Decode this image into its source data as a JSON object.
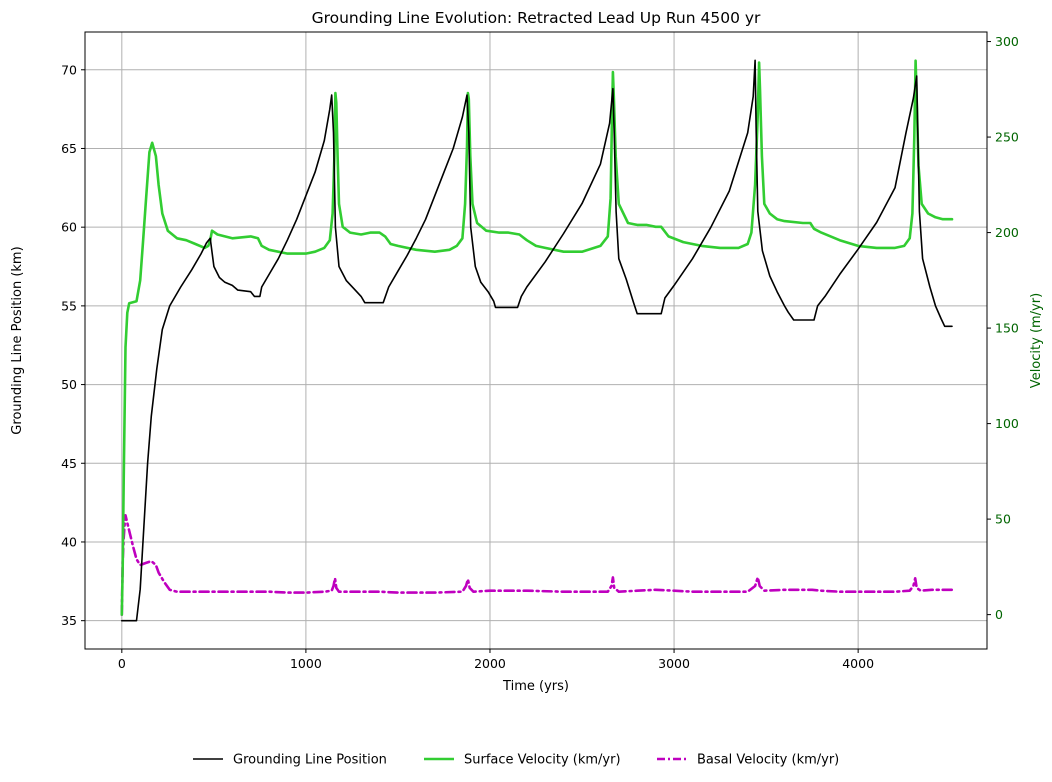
{
  "chart_data": {
    "type": "line",
    "title": "Grounding Line Evolution: Retracted Lead Up Run 4500 yr",
    "xlabel": "Time (yrs)",
    "ylabel": "Grounding Line Position (km)",
    "y2label": "Velocity (m/yr)",
    "xlim": [
      -200,
      4700
    ],
    "ylim": [
      33.2,
      72.4
    ],
    "y2lim": [
      -18,
      305
    ],
    "xticks": [
      0,
      1000,
      2000,
      3000,
      4000
    ],
    "yticks": [
      35,
      40,
      45,
      50,
      55,
      60,
      65,
      70
    ],
    "y2ticks": [
      0,
      50,
      100,
      150,
      200,
      250,
      300
    ],
    "grid": true,
    "legend_position": "bottom-center",
    "colors": {
      "grounding_line": "#000000",
      "surface_velocity": "#32cd32",
      "basal_velocity": "#bf00bf",
      "y2_axis": "#006400",
      "grid": "#b0b0b0"
    },
    "series": [
      {
        "name": "Grounding Line Position",
        "axis": "left",
        "style": "solid",
        "points": [
          [
            0,
            35
          ],
          [
            80,
            35
          ],
          [
            100,
            37
          ],
          [
            120,
            41
          ],
          [
            140,
            45
          ],
          [
            160,
            48
          ],
          [
            190,
            51
          ],
          [
            220,
            53.5
          ],
          [
            260,
            55
          ],
          [
            320,
            56.2
          ],
          [
            380,
            57.3
          ],
          [
            430,
            58.3
          ],
          [
            460,
            59
          ],
          [
            480,
            59.3
          ],
          [
            500,
            57.5
          ],
          [
            530,
            56.8
          ],
          [
            560,
            56.5
          ],
          [
            600,
            56.3
          ],
          [
            630,
            56
          ],
          [
            700,
            55.9
          ],
          [
            720,
            55.6
          ],
          [
            750,
            55.6
          ],
          [
            760,
            56.2
          ],
          [
            800,
            57
          ],
          [
            850,
            58
          ],
          [
            900,
            59.2
          ],
          [
            950,
            60.5
          ],
          [
            1000,
            62
          ],
          [
            1050,
            63.5
          ],
          [
            1100,
            65.5
          ],
          [
            1130,
            67.5
          ],
          [
            1140,
            68.4
          ],
          [
            1150,
            66
          ],
          [
            1160,
            60
          ],
          [
            1180,
            57.5
          ],
          [
            1220,
            56.6
          ],
          [
            1260,
            56.1
          ],
          [
            1300,
            55.6
          ],
          [
            1320,
            55.2
          ],
          [
            1420,
            55.2
          ],
          [
            1450,
            56.2
          ],
          [
            1500,
            57.2
          ],
          [
            1550,
            58.2
          ],
          [
            1600,
            59.3
          ],
          [
            1650,
            60.5
          ],
          [
            1700,
            62
          ],
          [
            1750,
            63.5
          ],
          [
            1800,
            65
          ],
          [
            1850,
            67
          ],
          [
            1875,
            68.4
          ],
          [
            1885,
            66
          ],
          [
            1895,
            60
          ],
          [
            1920,
            57.5
          ],
          [
            1950,
            56.5
          ],
          [
            1990,
            55.9
          ],
          [
            2020,
            55.3
          ],
          [
            2030,
            54.9
          ],
          [
            2150,
            54.9
          ],
          [
            2170,
            55.6
          ],
          [
            2200,
            56.2
          ],
          [
            2300,
            57.8
          ],
          [
            2400,
            59.6
          ],
          [
            2500,
            61.5
          ],
          [
            2600,
            64
          ],
          [
            2650,
            66.6
          ],
          [
            2668,
            68.8
          ],
          [
            2675,
            66
          ],
          [
            2685,
            61
          ],
          [
            2700,
            58
          ],
          [
            2740,
            56.7
          ],
          [
            2780,
            55.2
          ],
          [
            2800,
            54.5
          ],
          [
            2930,
            54.5
          ],
          [
            2950,
            55.5
          ],
          [
            3000,
            56.3
          ],
          [
            3100,
            58
          ],
          [
            3200,
            60
          ],
          [
            3300,
            62.3
          ],
          [
            3400,
            66
          ],
          [
            3430,
            68.3
          ],
          [
            3440,
            70.6
          ],
          [
            3446,
            66
          ],
          [
            3455,
            61
          ],
          [
            3480,
            58.5
          ],
          [
            3520,
            56.9
          ],
          [
            3560,
            55.9
          ],
          [
            3600,
            55
          ],
          [
            3620,
            54.6
          ],
          [
            3650,
            54.1
          ],
          [
            3760,
            54.1
          ],
          [
            3780,
            55
          ],
          [
            3820,
            55.6
          ],
          [
            3900,
            57
          ],
          [
            4000,
            58.6
          ],
          [
            4100,
            60.3
          ],
          [
            4200,
            62.5
          ],
          [
            4260,
            66
          ],
          [
            4300,
            68.2
          ],
          [
            4318,
            69.6
          ],
          [
            4324,
            66
          ],
          [
            4333,
            61
          ],
          [
            4350,
            58
          ],
          [
            4390,
            56.2
          ],
          [
            4420,
            55
          ],
          [
            4450,
            54.2
          ],
          [
            4470,
            53.7
          ],
          [
            4510,
            53.7
          ]
        ]
      },
      {
        "name": "Surface Velocity (km/yr)",
        "axis": "right",
        "style": "solid",
        "points": [
          [
            0,
            0
          ],
          [
            5,
            25
          ],
          [
            10,
            70
          ],
          [
            20,
            140
          ],
          [
            30,
            158
          ],
          [
            40,
            163
          ],
          [
            80,
            164
          ],
          [
            100,
            175
          ],
          [
            115,
            195
          ],
          [
            130,
            215
          ],
          [
            150,
            242
          ],
          [
            165,
            247
          ],
          [
            185,
            240
          ],
          [
            200,
            225
          ],
          [
            220,
            210
          ],
          [
            250,
            201
          ],
          [
            300,
            197
          ],
          [
            350,
            196
          ],
          [
            400,
            194
          ],
          [
            450,
            192
          ],
          [
            470,
            193
          ],
          [
            480,
            196
          ],
          [
            490,
            201
          ],
          [
            520,
            199
          ],
          [
            600,
            197
          ],
          [
            700,
            198
          ],
          [
            740,
            197
          ],
          [
            760,
            193
          ],
          [
            800,
            191
          ],
          [
            900,
            189
          ],
          [
            1000,
            189
          ],
          [
            1050,
            190
          ],
          [
            1100,
            192
          ],
          [
            1130,
            196
          ],
          [
            1145,
            210
          ],
          [
            1155,
            240
          ],
          [
            1160,
            273
          ],
          [
            1165,
            268
          ],
          [
            1172,
            240
          ],
          [
            1180,
            215
          ],
          [
            1200,
            203
          ],
          [
            1240,
            200
          ],
          [
            1300,
            199
          ],
          [
            1350,
            200
          ],
          [
            1400,
            200
          ],
          [
            1430,
            198
          ],
          [
            1460,
            194
          ],
          [
            1500,
            193
          ],
          [
            1600,
            191
          ],
          [
            1700,
            190
          ],
          [
            1780,
            191
          ],
          [
            1820,
            193
          ],
          [
            1850,
            197
          ],
          [
            1865,
            215
          ],
          [
            1875,
            245
          ],
          [
            1880,
            273
          ],
          [
            1885,
            270
          ],
          [
            1893,
            240
          ],
          [
            1905,
            215
          ],
          [
            1930,
            205
          ],
          [
            1980,
            201
          ],
          [
            2050,
            200
          ],
          [
            2100,
            200
          ],
          [
            2160,
            199
          ],
          [
            2200,
            196
          ],
          [
            2250,
            193
          ],
          [
            2300,
            192
          ],
          [
            2400,
            190
          ],
          [
            2500,
            190
          ],
          [
            2600,
            193
          ],
          [
            2640,
            198
          ],
          [
            2655,
            218
          ],
          [
            2663,
            260
          ],
          [
            2668,
            284
          ],
          [
            2673,
            270
          ],
          [
            2683,
            240
          ],
          [
            2700,
            215
          ],
          [
            2750,
            205
          ],
          [
            2800,
            204
          ],
          [
            2850,
            204
          ],
          [
            2900,
            203
          ],
          [
            2930,
            203
          ],
          [
            2970,
            198
          ],
          [
            3050,
            195
          ],
          [
            3150,
            193
          ],
          [
            3250,
            192
          ],
          [
            3350,
            192
          ],
          [
            3400,
            194
          ],
          [
            3420,
            200
          ],
          [
            3440,
            225
          ],
          [
            3455,
            262
          ],
          [
            3462,
            289
          ],
          [
            3467,
            275
          ],
          [
            3477,
            240
          ],
          [
            3490,
            215
          ],
          [
            3520,
            210
          ],
          [
            3560,
            207
          ],
          [
            3600,
            206
          ],
          [
            3700,
            205
          ],
          [
            3740,
            205
          ],
          [
            3760,
            202
          ],
          [
            3800,
            200
          ],
          [
            3900,
            196
          ],
          [
            4000,
            193
          ],
          [
            4100,
            192
          ],
          [
            4200,
            192
          ],
          [
            4250,
            193
          ],
          [
            4280,
            197
          ],
          [
            4295,
            210
          ],
          [
            4305,
            250
          ],
          [
            4312,
            290
          ],
          [
            4318,
            270
          ],
          [
            4328,
            235
          ],
          [
            4345,
            215
          ],
          [
            4380,
            210
          ],
          [
            4420,
            208
          ],
          [
            4460,
            207
          ],
          [
            4510,
            207
          ]
        ]
      },
      {
        "name": "Basal Velocity (km/yr)",
        "axis": "right",
        "style": "dashdot",
        "points": [
          [
            0,
            0
          ],
          [
            5,
            28
          ],
          [
            10,
            40
          ],
          [
            15,
            47
          ],
          [
            20,
            52
          ],
          [
            30,
            48
          ],
          [
            45,
            42
          ],
          [
            60,
            36
          ],
          [
            80,
            29
          ],
          [
            100,
            26
          ],
          [
            130,
            27
          ],
          [
            160,
            28
          ],
          [
            185,
            26
          ],
          [
            200,
            22
          ],
          [
            230,
            17
          ],
          [
            260,
            13
          ],
          [
            300,
            12
          ],
          [
            400,
            12
          ],
          [
            500,
            12
          ],
          [
            600,
            12
          ],
          [
            700,
            12
          ],
          [
            800,
            12
          ],
          [
            900,
            11.5
          ],
          [
            1000,
            11.5
          ],
          [
            1100,
            12
          ],
          [
            1140,
            12.5
          ],
          [
            1150,
            15
          ],
          [
            1158,
            19
          ],
          [
            1165,
            14
          ],
          [
            1180,
            12
          ],
          [
            1250,
            12
          ],
          [
            1400,
            12
          ],
          [
            1500,
            11.5
          ],
          [
            1700,
            11.5
          ],
          [
            1850,
            12
          ],
          [
            1870,
            15
          ],
          [
            1880,
            18.5
          ],
          [
            1890,
            14
          ],
          [
            1910,
            12
          ],
          [
            2000,
            12.5
          ],
          [
            2100,
            12.5
          ],
          [
            2200,
            12.5
          ],
          [
            2400,
            12
          ],
          [
            2550,
            12
          ],
          [
            2640,
            12
          ],
          [
            2660,
            15
          ],
          [
            2668,
            19.5
          ],
          [
            2675,
            14
          ],
          [
            2700,
            12
          ],
          [
            2800,
            12.5
          ],
          [
            2900,
            13
          ],
          [
            3000,
            12.5
          ],
          [
            3100,
            12
          ],
          [
            3300,
            12
          ],
          [
            3400,
            12
          ],
          [
            3440,
            15
          ],
          [
            3455,
            19.5
          ],
          [
            3465,
            15
          ],
          [
            3490,
            12.5
          ],
          [
            3600,
            13
          ],
          [
            3700,
            13
          ],
          [
            3750,
            13
          ],
          [
            3800,
            12.5
          ],
          [
            3900,
            12
          ],
          [
            4000,
            12
          ],
          [
            4200,
            12
          ],
          [
            4280,
            12.5
          ],
          [
            4300,
            15
          ],
          [
            4310,
            19
          ],
          [
            4318,
            14
          ],
          [
            4340,
            12.5
          ],
          [
            4400,
            13
          ],
          [
            4510,
            13
          ]
        ]
      }
    ]
  }
}
